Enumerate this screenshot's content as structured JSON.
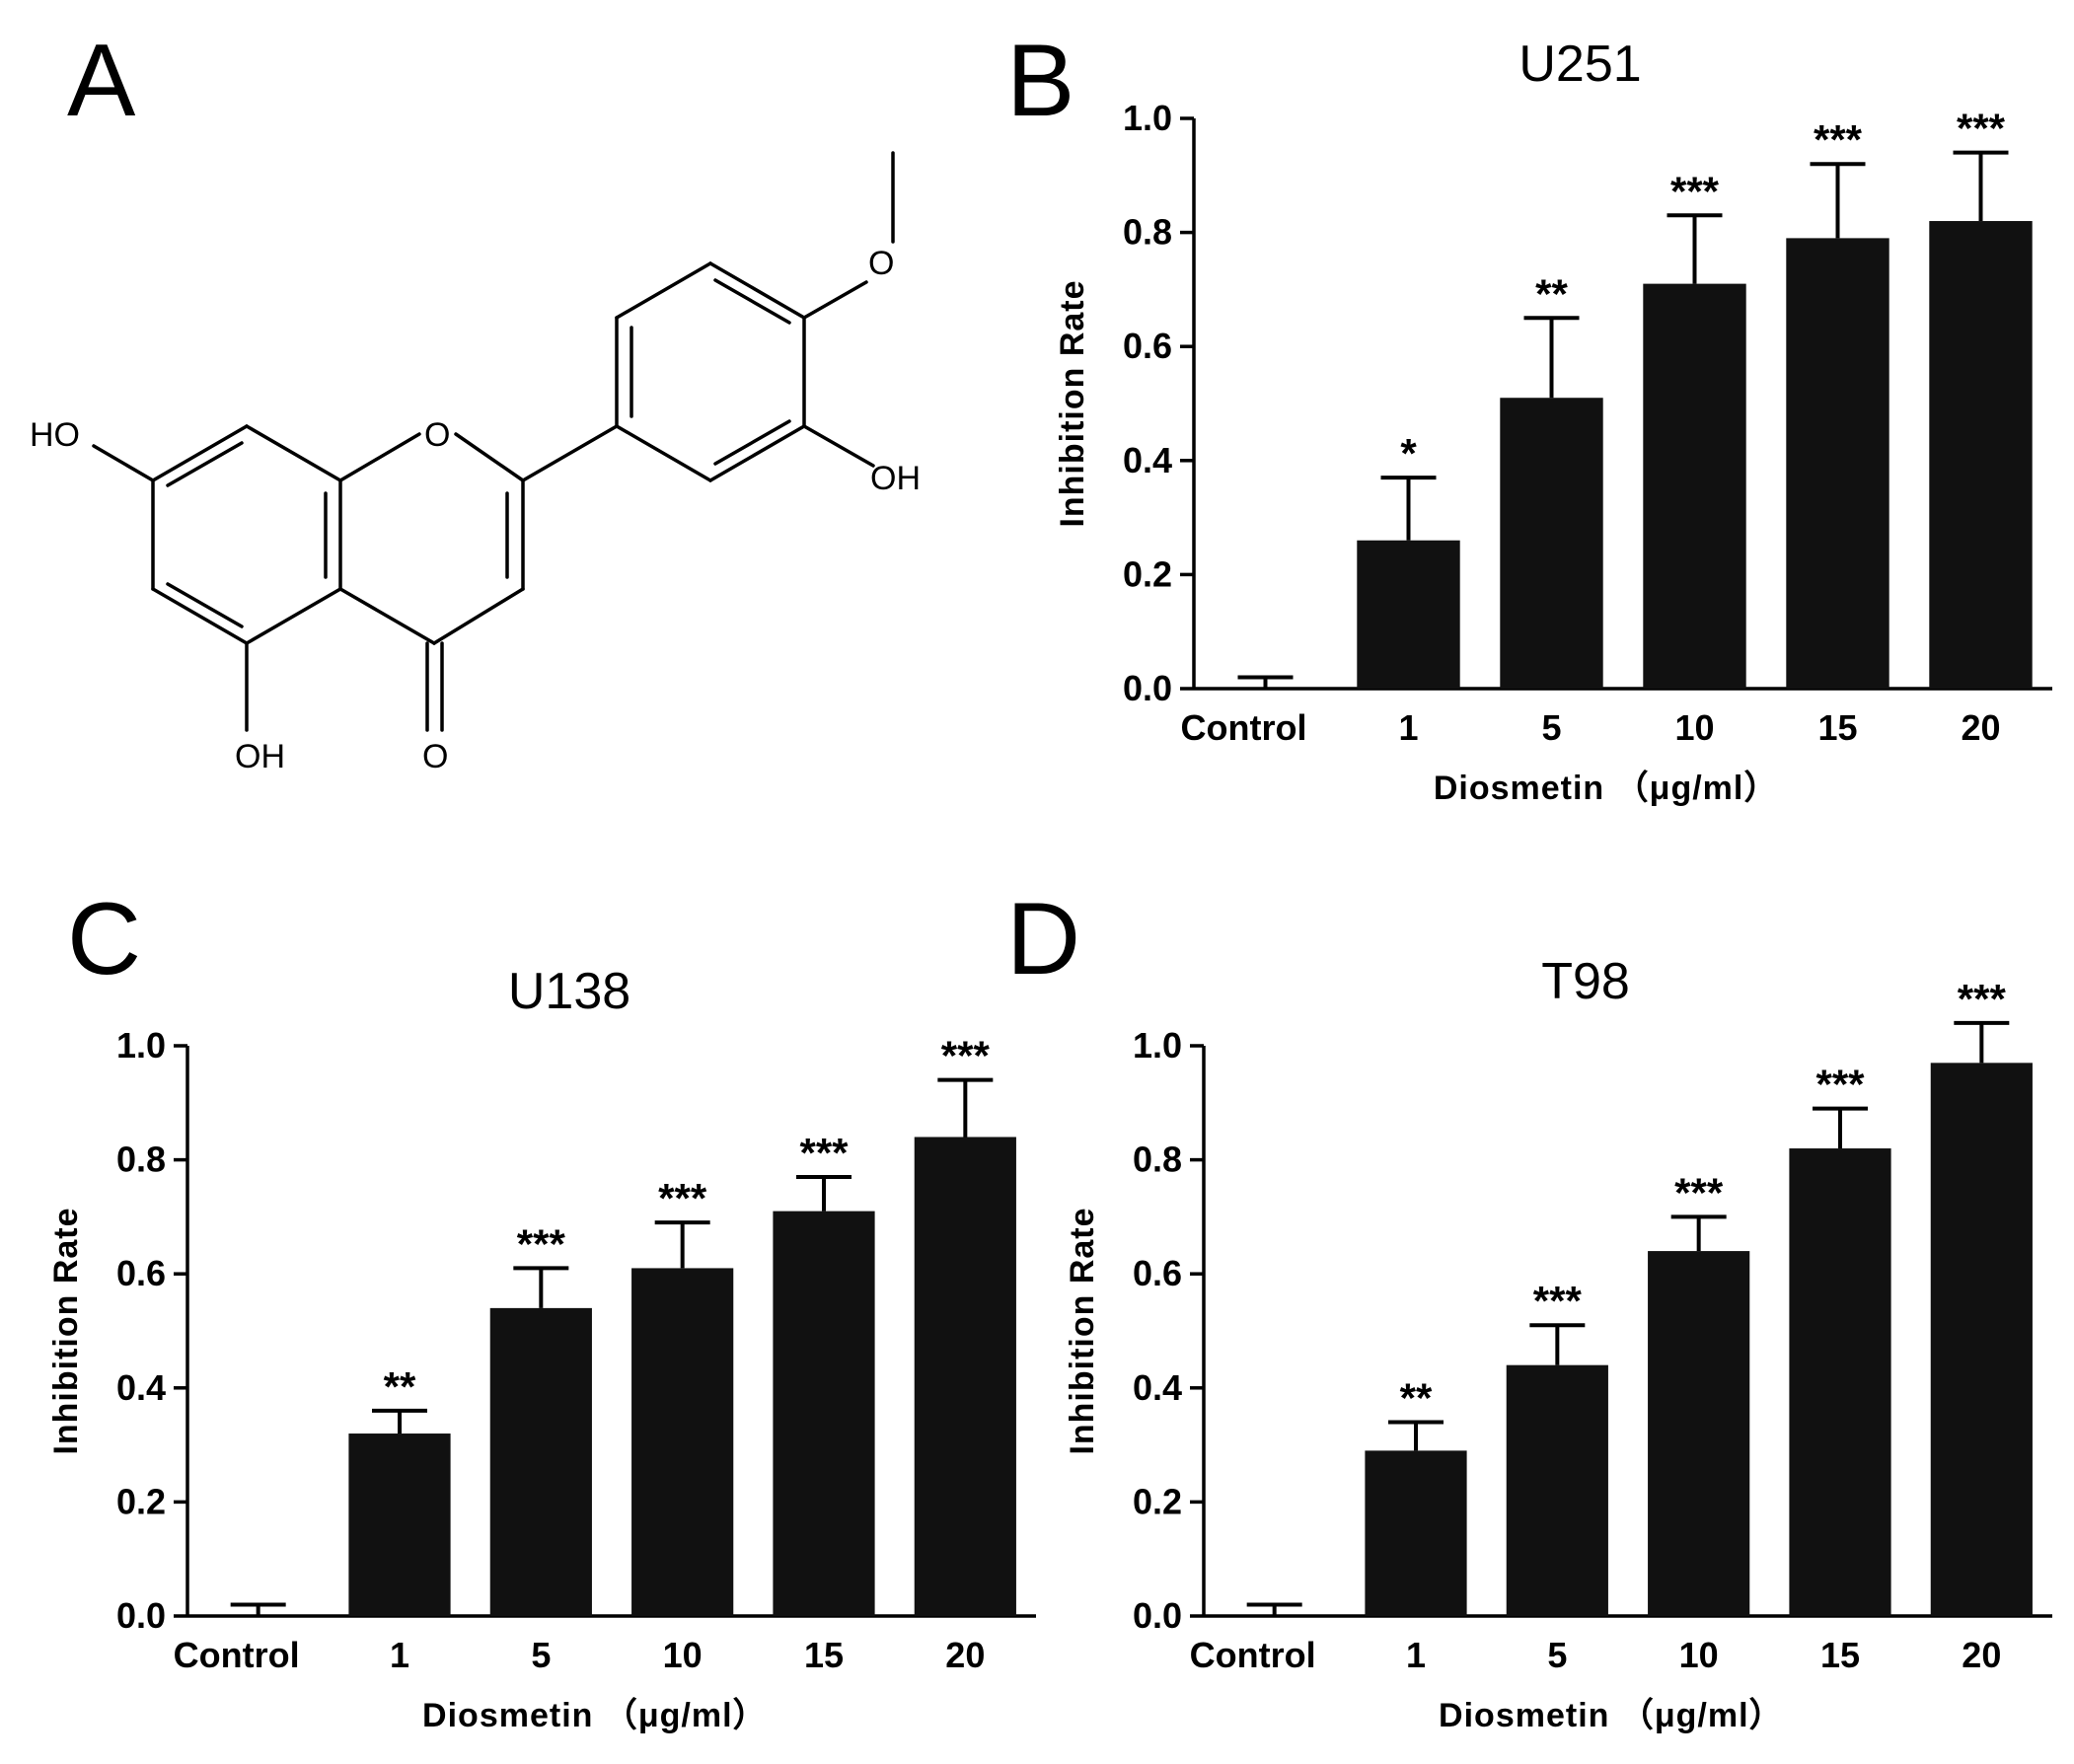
{
  "panels": {
    "a": {
      "letter": "A"
    },
    "b": {
      "letter": "B"
    },
    "c": {
      "letter": "C"
    },
    "d": {
      "letter": "D"
    }
  },
  "molecule": {
    "labels": {
      "ho_left": "HO",
      "o_ring": "O",
      "oh_right": "OH",
      "oh_bottom": "OH",
      "o_carbonyl": "O",
      "o_methoxy": "O"
    }
  },
  "chart_data": [
    {
      "panel": "B",
      "type": "bar",
      "title": "U251",
      "xlabel": "Diosmetin （μg/ml）",
      "ylabel": "Inhibition Rate",
      "categories": [
        "Control",
        "1",
        "5",
        "10",
        "15",
        "20"
      ],
      "values": [
        0.0,
        0.26,
        0.51,
        0.71,
        0.79,
        0.82
      ],
      "errors": [
        0.02,
        0.11,
        0.14,
        0.12,
        0.13,
        0.12
      ],
      "significance": [
        "",
        "*",
        "**",
        "***",
        "***",
        "***"
      ],
      "ylim": [
        0,
        1.0
      ],
      "yticks": [
        "0.0",
        "0.2",
        "0.4",
        "0.6",
        "0.8",
        "1.0"
      ],
      "bar_color": "#111111"
    },
    {
      "panel": "C",
      "type": "bar",
      "title": "U138",
      "xlabel": "Diosmetin （μg/ml）",
      "ylabel": "Inhibition Rate",
      "categories": [
        "Control",
        "1",
        "5",
        "10",
        "15",
        "20"
      ],
      "values": [
        0.0,
        0.32,
        0.54,
        0.61,
        0.71,
        0.84
      ],
      "errors": [
        0.02,
        0.04,
        0.07,
        0.08,
        0.06,
        0.1
      ],
      "significance": [
        "",
        "**",
        "***",
        "***",
        "***",
        "***"
      ],
      "ylim": [
        0,
        1.0
      ],
      "yticks": [
        "0.0",
        "0.2",
        "0.4",
        "0.6",
        "0.8",
        "1.0"
      ],
      "bar_color": "#111111"
    },
    {
      "panel": "D",
      "type": "bar",
      "title": "T98",
      "xlabel": "Diosmetin （μg/ml）",
      "ylabel": "Inhibition Rate",
      "categories": [
        "Control",
        "1",
        "5",
        "10",
        "15",
        "20"
      ],
      "values": [
        0.0,
        0.29,
        0.44,
        0.64,
        0.82,
        0.97
      ],
      "errors": [
        0.02,
        0.05,
        0.07,
        0.06,
        0.07,
        0.07
      ],
      "significance": [
        "",
        "**",
        "***",
        "***",
        "***",
        "***"
      ],
      "ylim": [
        0,
        1.0
      ],
      "yticks": [
        "0.0",
        "0.2",
        "0.4",
        "0.6",
        "0.8",
        "1.0"
      ],
      "bar_color": "#111111"
    }
  ]
}
